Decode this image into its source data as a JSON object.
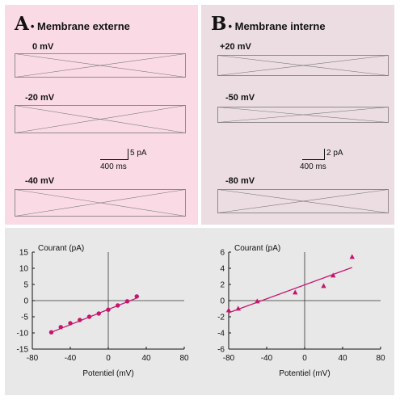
{
  "colors": {
    "panel_a_bg": "#fadbe5",
    "panel_b_bg": "#ecdde3",
    "plot_bg": "#e8e8e8",
    "series": "#c8146e",
    "trace": "#777777"
  },
  "panel_a": {
    "letter": "A",
    "title": "• Membrane externe",
    "traces": [
      "0 mV",
      "-20 mV",
      "-40 mV"
    ],
    "scale_amp": "5 pA",
    "scale_time": "400 ms"
  },
  "panel_b": {
    "letter": "B",
    "title": "• Membrane interne",
    "traces": [
      "+20 mV",
      "-50 mV",
      "-80 mV"
    ],
    "scale_amp": "2 pA",
    "scale_time": "400 ms"
  },
  "chart_data": [
    {
      "type": "scatter",
      "title": "",
      "xlabel": "Potentiel (mV)",
      "ylabel": "Courant (pA)",
      "xlim": [
        -80,
        80
      ],
      "ylim": [
        -15,
        15
      ],
      "xticks": [
        -80,
        -40,
        0,
        40,
        80
      ],
      "yticks": [
        -15,
        -10,
        -5,
        0,
        5,
        10,
        15
      ],
      "marker": "circle",
      "series": [
        {
          "x": [
            -60,
            -50,
            -40,
            -30,
            -20,
            -10,
            0,
            10,
            20,
            30
          ],
          "y": [
            -9.8,
            -8.2,
            -7.0,
            -6.0,
            -5.0,
            -4.0,
            -2.8,
            -1.5,
            -0.2,
            1.3
          ]
        }
      ],
      "fit_line": {
        "x": [
          -60,
          30
        ],
        "y": [
          -9.8,
          0.8
        ]
      }
    },
    {
      "type": "scatter",
      "title": "",
      "xlabel": "Potentiel (mV)",
      "ylabel": "Courant (pA)",
      "xlim": [
        -80,
        80
      ],
      "ylim": [
        -6,
        6
      ],
      "xticks": [
        -80,
        -40,
        0,
        40,
        80
      ],
      "yticks": [
        -6,
        -4,
        -2,
        0,
        2,
        4,
        6
      ],
      "marker": "triangle",
      "series": [
        {
          "x": [
            -80,
            -70,
            -50,
            -10,
            20,
            30,
            50
          ],
          "y": [
            -1.2,
            -1.0,
            -0.1,
            1.0,
            1.8,
            3.1,
            5.4
          ]
        }
      ],
      "fit_line": {
        "x": [
          -80,
          50
        ],
        "y": [
          -1.5,
          4.1
        ]
      }
    }
  ]
}
